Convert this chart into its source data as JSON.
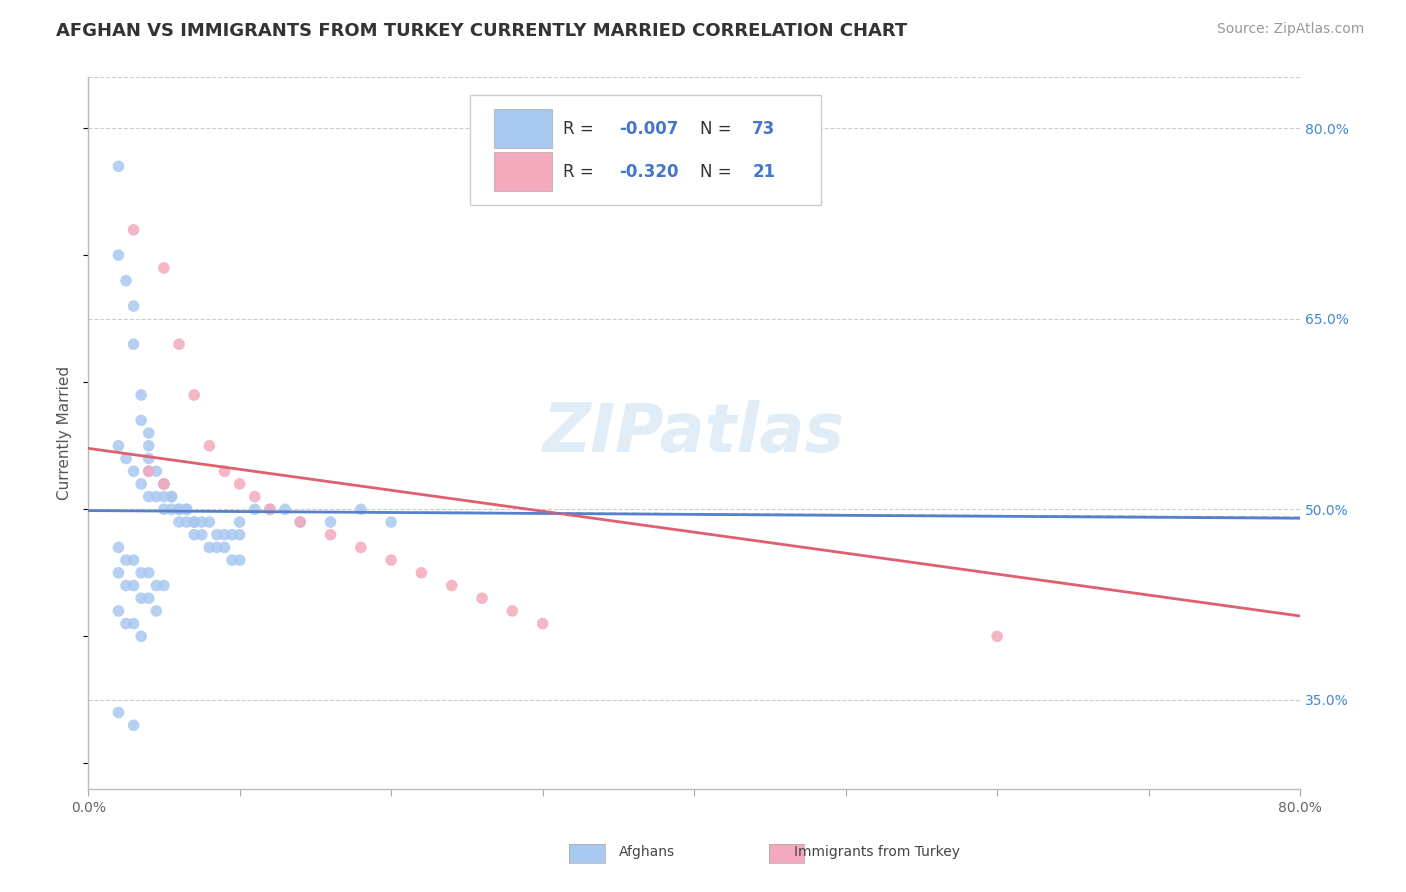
{
  "title": "AFGHAN VS IMMIGRANTS FROM TURKEY CURRENTLY MARRIED CORRELATION CHART",
  "source": "Source: ZipAtlas.com",
  "ylabel": "Currently Married",
  "watermark": "ZIPatlas",
  "x_min": 0.0,
  "x_max": 0.8,
  "y_min": 0.28,
  "y_max": 0.84,
  "x_ticks": [
    0.0,
    0.1,
    0.2,
    0.3,
    0.4,
    0.5,
    0.6,
    0.7,
    0.8
  ],
  "y_ticks": [
    0.35,
    0.5,
    0.65,
    0.8
  ],
  "y_tick_labels_right": [
    "35.0%",
    "50.0%",
    "65.0%",
    "80.0%"
  ],
  "blue_scatter_color": "#a8c8f0",
  "pink_scatter_color": "#f4aabc",
  "blue_line_color": "#5580cc",
  "pink_line_color": "#e06070",
  "grid_color": "#cccccc",
  "background_color": "#ffffff",
  "legend_text_color": "#4477cc",
  "legend_label_color": "#333333",
  "blue_points_x": [
    0.02,
    0.02,
    0.025,
    0.03,
    0.03,
    0.035,
    0.035,
    0.04,
    0.04,
    0.04,
    0.04,
    0.045,
    0.05,
    0.05,
    0.05,
    0.055,
    0.055,
    0.06,
    0.06,
    0.065,
    0.065,
    0.07,
    0.07,
    0.075,
    0.08,
    0.085,
    0.09,
    0.095,
    0.1,
    0.1,
    0.11,
    0.12,
    0.13,
    0.14,
    0.16,
    0.18,
    0.2,
    0.02,
    0.025,
    0.03,
    0.035,
    0.04,
    0.045,
    0.05,
    0.055,
    0.06,
    0.065,
    0.07,
    0.075,
    0.08,
    0.085,
    0.09,
    0.095,
    0.1,
    0.02,
    0.025,
    0.03,
    0.035,
    0.04,
    0.045,
    0.05,
    0.02,
    0.025,
    0.03,
    0.035,
    0.04,
    0.045,
    0.02,
    0.025,
    0.03,
    0.035,
    0.02,
    0.03
  ],
  "blue_points_y": [
    0.77,
    0.7,
    0.68,
    0.66,
    0.63,
    0.59,
    0.57,
    0.56,
    0.55,
    0.54,
    0.53,
    0.53,
    0.52,
    0.52,
    0.51,
    0.51,
    0.51,
    0.5,
    0.5,
    0.5,
    0.5,
    0.49,
    0.49,
    0.49,
    0.49,
    0.48,
    0.48,
    0.48,
    0.48,
    0.49,
    0.5,
    0.5,
    0.5,
    0.49,
    0.49,
    0.5,
    0.49,
    0.55,
    0.54,
    0.53,
    0.52,
    0.51,
    0.51,
    0.5,
    0.5,
    0.49,
    0.49,
    0.48,
    0.48,
    0.47,
    0.47,
    0.47,
    0.46,
    0.46,
    0.47,
    0.46,
    0.46,
    0.45,
    0.45,
    0.44,
    0.44,
    0.45,
    0.44,
    0.44,
    0.43,
    0.43,
    0.42,
    0.42,
    0.41,
    0.41,
    0.4,
    0.34,
    0.33
  ],
  "pink_points_x": [
    0.03,
    0.05,
    0.06,
    0.07,
    0.08,
    0.09,
    0.1,
    0.11,
    0.12,
    0.14,
    0.16,
    0.18,
    0.2,
    0.22,
    0.24,
    0.26,
    0.28,
    0.3,
    0.6,
    0.04,
    0.05
  ],
  "pink_points_y": [
    0.72,
    0.69,
    0.63,
    0.59,
    0.55,
    0.53,
    0.52,
    0.51,
    0.5,
    0.49,
    0.48,
    0.47,
    0.46,
    0.45,
    0.44,
    0.43,
    0.42,
    0.41,
    0.4,
    0.53,
    0.52
  ],
  "blue_line_x": [
    0.0,
    0.8
  ],
  "blue_line_y": [
    0.499,
    0.493
  ],
  "pink_line_x": [
    0.0,
    0.8
  ],
  "pink_line_y": [
    0.548,
    0.416
  ],
  "title_fontsize": 13,
  "source_fontsize": 10,
  "axis_label_fontsize": 11,
  "tick_fontsize": 10,
  "legend_fontsize": 12,
  "watermark_fontsize": 48,
  "marker_size": 70
}
